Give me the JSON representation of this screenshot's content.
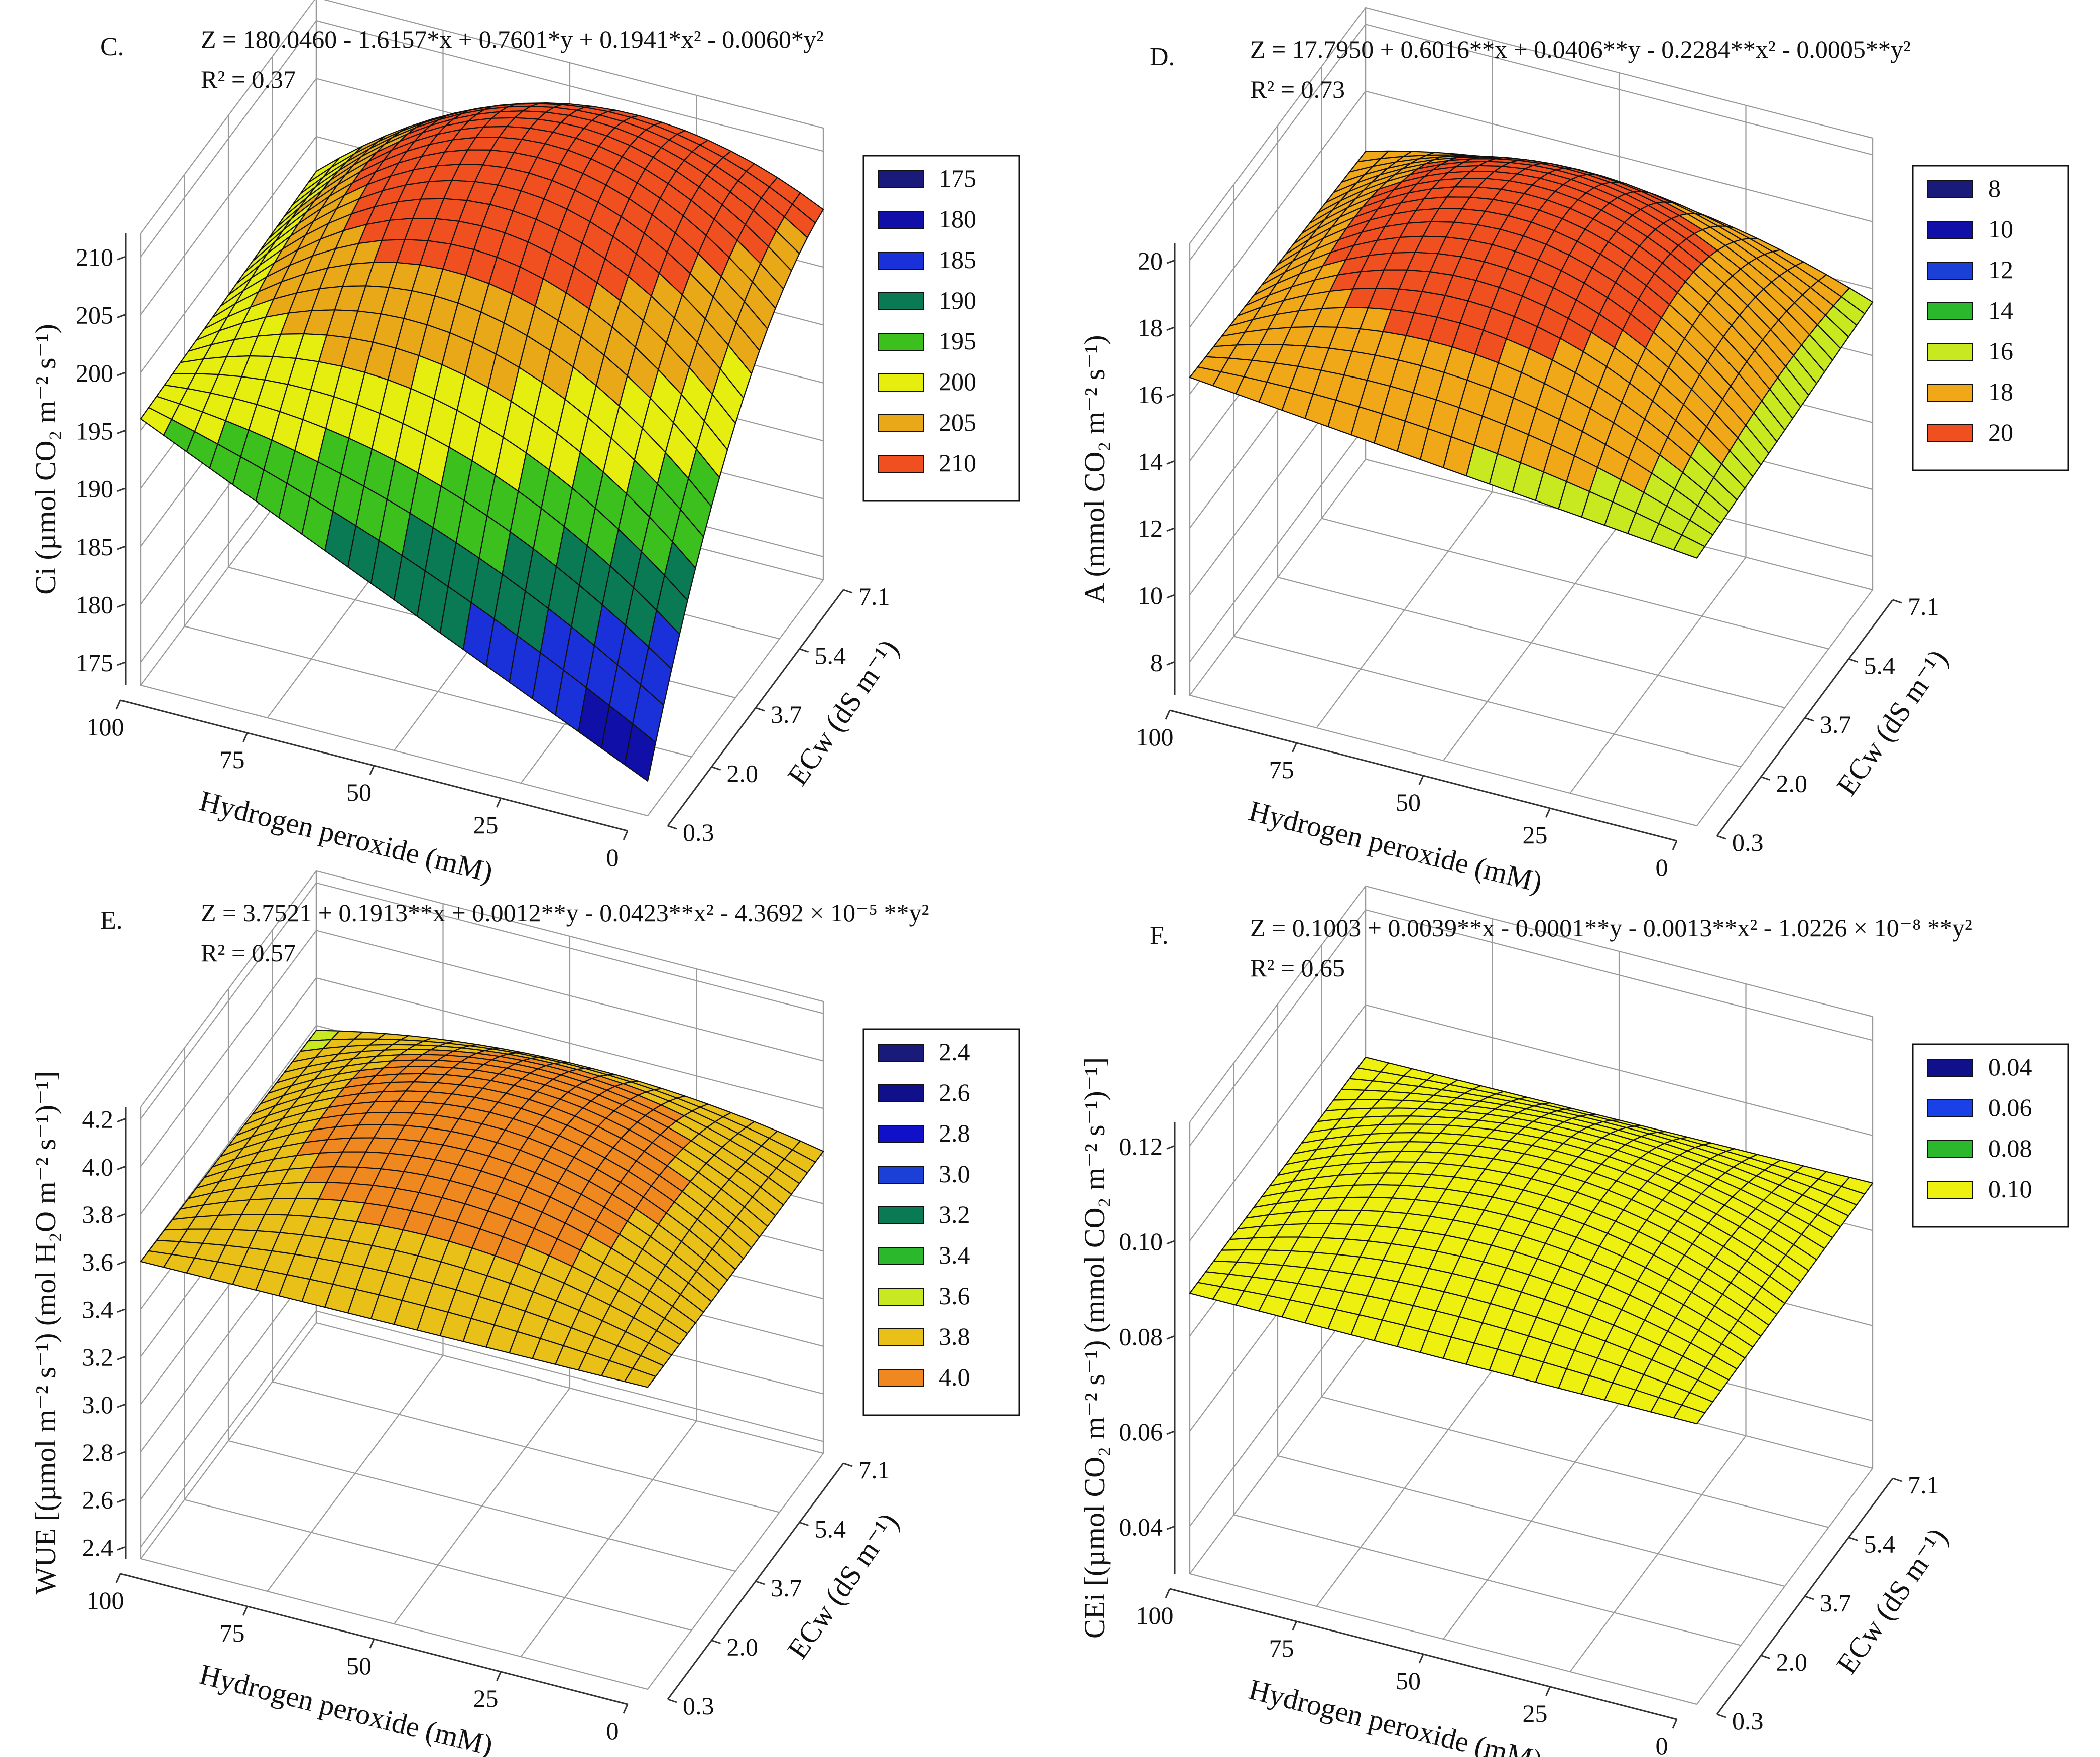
{
  "chart_data": [
    {
      "type": "surface",
      "panel": "C.",
      "equation": "Z = 180.0460 - 1.6157*x + 0.7601*y + 0.1941*x² - 0.0060*y²",
      "r2": "R² = 0.37",
      "zlabel": "Ci (µmol CO₂ m⁻² s⁻¹)",
      "xlabel": "Hydrogen peroxide (mM)",
      "ylabel": "ECw (dS m⁻¹)",
      "x_ticks": [
        "0",
        "25",
        "50",
        "75",
        "100"
      ],
      "y_ticks": [
        "0.3",
        "2.0",
        "3.7",
        "5.4",
        "7.1"
      ],
      "z_ticks": [
        "175",
        "180",
        "185",
        "190",
        "195",
        "200",
        "205",
        "210"
      ],
      "zlim": [
        173,
        212
      ],
      "legend": [
        "175",
        "180",
        "185",
        "190",
        "195",
        "200",
        "205",
        "210"
      ],
      "legend_colors": [
        "#1a1a7a",
        "#1010a8",
        "#1a30d8",
        "#0a7a55",
        "#3cc01e",
        "#e6ee10",
        "#e8a818",
        "#f05020"
      ],
      "surface_shape": {
        "z_at_corners": {
          "x0_y0": 176,
          "x100_y0": 196,
          "x0_y100": 199,
          "x100_y100": 197
        },
        "peak": {
          "x": 40,
          "y": 62,
          "z": 210
        }
      },
      "grid": true
    },
    {
      "type": "surface",
      "panel": "D.",
      "equation": "Z = 17.7950 + 0.6016**x + 0.0406**y - 0.2284**x² - 0.0005**y²",
      "r2": "R² = 0.73",
      "zlabel": "A (mmol CO₂ m⁻² s⁻¹)",
      "xlabel": "Hydrogen peroxide (mM)",
      "ylabel": "ECw (dS m⁻¹)",
      "x_ticks": [
        "0",
        "25",
        "50",
        "75",
        "100"
      ],
      "y_ticks": [
        "0.3",
        "2.0",
        "3.7",
        "5.4",
        "7.1"
      ],
      "z_ticks": [
        "8",
        "10",
        "12",
        "14",
        "16",
        "18",
        "20"
      ],
      "zlim": [
        7,
        20.5
      ],
      "legend": [
        "8",
        "10",
        "12",
        "14",
        "16",
        "18",
        "20"
      ],
      "legend_colors": [
        "#1a1a7a",
        "#1010a8",
        "#1a40d8",
        "#2cb82c",
        "#c8e820",
        "#f0a818",
        "#f05020"
      ],
      "surface_shape": {
        "z_at_corners": {
          "x0_y0": 15.0,
          "x100_y0": 16.5,
          "x0_y100": 15.6,
          "x100_y100": 16.2
        },
        "peak": {
          "x": 50,
          "y": 55,
          "z": 19.6
        }
      },
      "grid": true
    },
    {
      "type": "surface",
      "panel": "E.",
      "equation": "Z = 3.7521 + 0.1913**x + 0.0012**y - 0.0423**x² - 4.3692 × 10⁻⁵ **y²",
      "r2": "R² = 0.57",
      "zlabel": "WUE [(µmol m⁻² s⁻¹) (mol H₂O m⁻² s⁻¹)⁻¹]",
      "xlabel": "Hydrogen peroxide (mM)",
      "ylabel": "ECw (dS m⁻¹)",
      "x_ticks": [
        "0",
        "25",
        "50",
        "75",
        "100"
      ],
      "y_ticks": [
        "0.3",
        "2.0",
        "3.7",
        "5.4",
        "7.1"
      ],
      "z_ticks": [
        "2.4",
        "2.6",
        "2.8",
        "3.0",
        "3.2",
        "3.4",
        "3.6",
        "3.8",
        "4.0",
        "4.2"
      ],
      "zlim": [
        2.35,
        4.25
      ],
      "legend": [
        "2.4",
        "2.6",
        "2.8",
        "3.0",
        "3.2",
        "3.4",
        "3.6",
        "3.8",
        "4.0"
      ],
      "legend_colors": [
        "#1a1a7a",
        "#10108a",
        "#1010c8",
        "#1a40d8",
        "#0a7a55",
        "#2cb82c",
        "#c8e820",
        "#e8c018",
        "#f08820"
      ],
      "surface_shape": {
        "z_at_corners": {
          "x0_y0": 3.62,
          "x100_y0": 3.6,
          "x0_y100": 3.62,
          "x100_y100": 3.58
        },
        "peak": {
          "x": 50,
          "y": 55,
          "z": 3.96
        }
      },
      "grid": true
    },
    {
      "type": "surface",
      "panel": "F.",
      "equation": "Z = 0.1003 + 0.0039**x - 0.0001**y - 0.0013**x² - 1.0226 × 10⁻⁸ **y²",
      "r2": "R² = 0.65",
      "zlabel": "CEi [(µmol CO₂ m⁻² s⁻¹) (mmol CO₂ m⁻² s⁻¹)⁻¹]",
      "xlabel": "Hydrogen peroxide (mM)",
      "ylabel": "ECw (dS m⁻¹)",
      "x_ticks": [
        "0",
        "25",
        "50",
        "75",
        "100"
      ],
      "y_ticks": [
        "0.3",
        "2.0",
        "3.7",
        "5.4",
        "7.1"
      ],
      "z_ticks": [
        "0.04",
        "0.06",
        "0.08",
        "0.10",
        "0.12"
      ],
      "zlim": [
        0.03,
        0.125
      ],
      "legend": [
        "0.04",
        "0.06",
        "0.08",
        "0.10"
      ],
      "legend_colors": [
        "#10108a",
        "#1a40e8",
        "#2cb82c",
        "#eef010"
      ],
      "surface_shape": {
        "z_at_corners": {
          "x0_y0": 0.089,
          "x100_y0": 0.089,
          "x0_y100": 0.09,
          "x100_y100": 0.089
        },
        "peak": {
          "x": 50,
          "y": 50,
          "z": 0.102
        }
      },
      "grid": true
    }
  ]
}
